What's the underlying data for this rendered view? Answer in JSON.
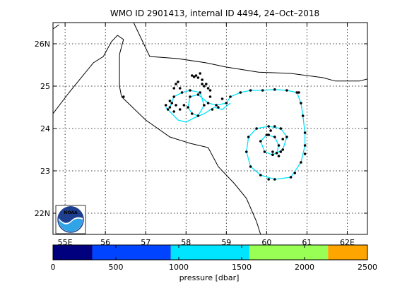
{
  "chart_data": {
    "type": "map-track",
    "title": "WMO ID 2901413, internal ID 4494, 24–Oct–2018",
    "x_tick_labels": [
      "55E",
      "56",
      "57",
      "58",
      "59",
      "60",
      "61",
      "62E"
    ],
    "y_tick_labels": [
      "22N",
      "23",
      "24",
      "25",
      "26N"
    ],
    "xlim": [
      54.7,
      62.5
    ],
    "ylim": [
      21.5,
      26.5
    ],
    "x_ticks": [
      55,
      56,
      57,
      58,
      59,
      60,
      61,
      62
    ],
    "y_ticks": [
      22,
      23,
      24,
      25,
      26
    ],
    "grid": true,
    "coastline": [
      [
        [
          54.7,
          26.35
        ],
        [
          54.85,
          26.45
        ]
      ],
      [
        [
          56.7,
          26.5
        ],
        [
          57.1,
          25.7
        ],
        [
          57.8,
          25.65
        ],
        [
          58.5,
          25.55
        ],
        [
          59.0,
          25.45
        ],
        [
          59.8,
          25.33
        ],
        [
          60.6,
          25.3
        ],
        [
          61.4,
          25.2
        ],
        [
          61.7,
          25.12
        ],
        [
          62.3,
          25.12
        ],
        [
          62.5,
          25.17
        ]
      ],
      [
        [
          54.7,
          24.35
        ],
        [
          55.1,
          24.85
        ],
        [
          55.7,
          25.55
        ],
        [
          55.95,
          25.7
        ],
        [
          56.15,
          26.05
        ],
        [
          56.3,
          26.2
        ],
        [
          56.45,
          26.1
        ],
        [
          56.35,
          25.75
        ],
        [
          56.35,
          25.0
        ],
        [
          56.4,
          24.75
        ],
        [
          57.0,
          24.2
        ],
        [
          57.6,
          23.8
        ],
        [
          58.1,
          23.65
        ],
        [
          58.55,
          23.55
        ],
        [
          58.8,
          23.1
        ],
        [
          59.2,
          22.7
        ],
        [
          59.5,
          22.35
        ],
        [
          59.75,
          21.8
        ],
        [
          59.85,
          21.5
        ]
      ]
    ],
    "track_segments": [
      {
        "color": "cyan",
        "points": [
          [
            57.6,
            24.5
          ],
          [
            57.7,
            24.75
          ],
          [
            57.9,
            24.85
          ],
          [
            58.1,
            24.9
          ],
          [
            58.35,
            24.85
          ],
          [
            58.45,
            24.55
          ],
          [
            58.3,
            24.3
          ],
          [
            58.15,
            24.35
          ],
          [
            58.05,
            24.5
          ],
          [
            58.1,
            24.75
          ],
          [
            58.3,
            24.8
          ],
          [
            58.55,
            24.6
          ],
          [
            58.75,
            24.55
          ],
          [
            59.0,
            24.6
          ],
          [
            59.1,
            24.75
          ],
          [
            59.35,
            24.85
          ],
          [
            59.6,
            24.9
          ],
          [
            59.9,
            24.9
          ],
          [
            60.2,
            24.92
          ],
          [
            60.5,
            24.9
          ],
          [
            60.75,
            24.85
          ],
          [
            60.85,
            24.6
          ],
          [
            60.9,
            24.3
          ],
          [
            60.95,
            23.9
          ],
          [
            60.95,
            23.6
          ],
          [
            60.85,
            23.2
          ],
          [
            60.6,
            22.85
          ],
          [
            60.2,
            22.8
          ],
          [
            59.85,
            22.9
          ],
          [
            59.6,
            23.1
          ],
          [
            59.5,
            23.45
          ],
          [
            59.55,
            23.8
          ],
          [
            59.75,
            24.0
          ],
          [
            60.05,
            24.05
          ],
          [
            60.35,
            24.0
          ],
          [
            60.5,
            23.8
          ],
          [
            60.4,
            23.5
          ],
          [
            60.15,
            23.38
          ],
          [
            59.95,
            23.45
          ],
          [
            59.85,
            23.7
          ],
          [
            60.0,
            23.85
          ],
          [
            60.2,
            23.8
          ],
          [
            60.3,
            23.6
          ],
          [
            60.25,
            23.42
          ]
        ]
      },
      {
        "color": "cyan",
        "points": [
          [
            57.5,
            24.5
          ],
          [
            57.65,
            24.35
          ],
          [
            57.8,
            24.2
          ],
          [
            58.0,
            24.15
          ],
          [
            58.2,
            24.25
          ],
          [
            58.45,
            24.35
          ],
          [
            58.7,
            24.5
          ],
          [
            58.9,
            24.45
          ],
          [
            59.1,
            24.6
          ]
        ]
      }
    ],
    "track_points": [
      [
        57.6,
        24.5
      ],
      [
        57.7,
        24.75
      ],
      [
        57.9,
        24.85
      ],
      [
        58.1,
        24.9
      ],
      [
        58.35,
        24.85
      ],
      [
        58.45,
        24.55
      ],
      [
        58.3,
        24.3
      ],
      [
        58.15,
        24.35
      ],
      [
        58.05,
        24.5
      ],
      [
        58.1,
        24.75
      ],
      [
        58.3,
        24.8
      ],
      [
        58.55,
        24.6
      ],
      [
        58.75,
        24.55
      ],
      [
        59.0,
        24.6
      ],
      [
        59.1,
        24.75
      ],
      [
        59.35,
        24.85
      ],
      [
        59.6,
        24.9
      ],
      [
        59.9,
        24.9
      ],
      [
        60.2,
        24.92
      ],
      [
        60.5,
        24.9
      ],
      [
        60.75,
        24.85
      ],
      [
        60.85,
        24.6
      ],
      [
        60.9,
        24.3
      ],
      [
        60.95,
        23.9
      ],
      [
        60.95,
        23.6
      ],
      [
        60.85,
        23.2
      ],
      [
        60.6,
        22.85
      ],
      [
        60.2,
        22.8
      ],
      [
        59.85,
        22.9
      ],
      [
        59.6,
        23.1
      ],
      [
        59.5,
        23.45
      ],
      [
        59.55,
        23.8
      ],
      [
        59.75,
        24.0
      ],
      [
        60.05,
        24.05
      ],
      [
        60.35,
        24.0
      ],
      [
        60.5,
        23.8
      ],
      [
        60.4,
        23.5
      ],
      [
        60.15,
        23.38
      ],
      [
        59.95,
        23.45
      ],
      [
        59.85,
        23.7
      ],
      [
        60.0,
        23.85
      ],
      [
        60.2,
        23.8
      ],
      [
        60.3,
        23.6
      ],
      [
        60.25,
        23.42
      ],
      [
        58.25,
        25.25
      ],
      [
        58.3,
        25.2
      ],
      [
        58.35,
        25.3
      ],
      [
        58.2,
        25.22
      ],
      [
        58.4,
        25.15
      ],
      [
        58.15,
        25.25
      ],
      [
        57.75,
        25.05
      ],
      [
        57.8,
        25.1
      ],
      [
        57.7,
        24.95
      ],
      [
        57.85,
        24.95
      ],
      [
        58.45,
        25.0
      ],
      [
        58.5,
        25.05
      ],
      [
        58.55,
        24.95
      ],
      [
        58.4,
        25.05
      ],
      [
        58.6,
        24.9
      ],
      [
        57.5,
        24.55
      ],
      [
        57.55,
        24.45
      ],
      [
        57.65,
        24.6
      ],
      [
        57.75,
        24.55
      ],
      [
        57.85,
        24.45
      ],
      [
        57.95,
        24.55
      ],
      [
        57.7,
        24.4
      ],
      [
        57.6,
        24.65
      ],
      [
        58.65,
        24.45
      ],
      [
        58.8,
        24.5
      ],
      [
        58.6,
        24.75
      ],
      [
        58.9,
        24.7
      ],
      [
        56.45,
        24.75
      ],
      [
        60.1,
        23.95
      ],
      [
        60.2,
        24.05
      ],
      [
        60.05,
        23.85
      ],
      [
        60.15,
        23.45
      ],
      [
        60.3,
        23.35
      ],
      [
        60.35,
        23.45
      ],
      [
        60.4,
        23.75
      ],
      [
        60.05,
        22.8
      ],
      [
        60.7,
        22.95
      ],
      [
        60.95,
        23.4
      ],
      [
        60.8,
        24.85
      ]
    ],
    "colorbar": {
      "label": "pressure [dbar]",
      "range": [
        0,
        2500
      ],
      "tick_labels": [
        "0",
        "500",
        "1000",
        "1500",
        "2000",
        "2500"
      ],
      "ticks": [
        0,
        500,
        1000,
        1500,
        2000,
        2500
      ],
      "bands": [
        {
          "from": 0,
          "to": 312,
          "color": "#00007f"
        },
        {
          "from": 312,
          "to": 937,
          "color": "#0044ff"
        },
        {
          "from": 937,
          "to": 1562,
          "color": "#00e5ff"
        },
        {
          "from": 1562,
          "to": 2187,
          "color": "#99ff55"
        },
        {
          "from": 2187,
          "to": 2500,
          "color": "#ffa500"
        }
      ]
    },
    "logo_text": "NOAA"
  }
}
